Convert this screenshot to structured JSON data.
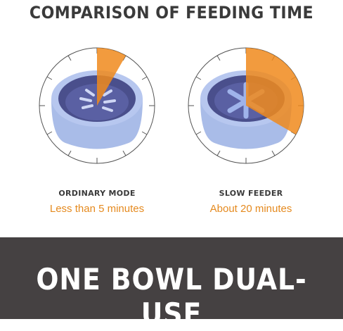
{
  "title": "COMPARISON OF FEEDING TIME",
  "modes": [
    {
      "label": "ORDINARY MODE",
      "time": "Less than 5 minutes",
      "fraction": 0.0833
    },
    {
      "label": "SLOW FEEDER",
      "time": "About 20 minutes",
      "fraction": 0.3333
    }
  ],
  "banner": {
    "text": "ONE BOWL DUAL-USE"
  },
  "colors": {
    "accent": "#e58a1f",
    "bowl": "#a9bce8",
    "bowl_inner": "#4a4f8c",
    "banner_bg": "#454142",
    "text_dark": "#3a3a3a"
  }
}
